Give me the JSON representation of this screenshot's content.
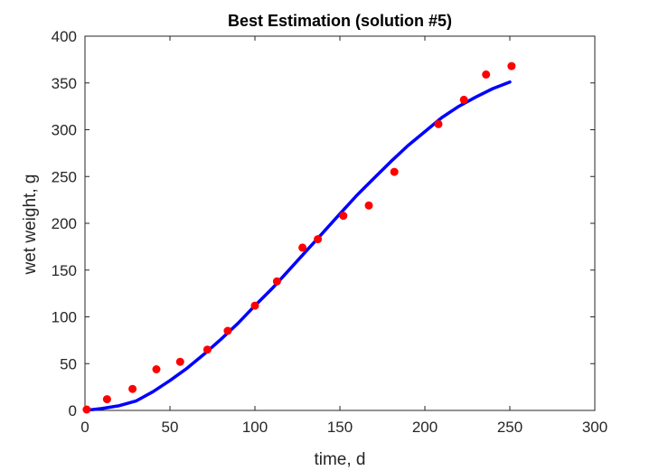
{
  "chart_data": {
    "type": "scatter",
    "title": "Best Estimation (solution #5)",
    "xlabel": "time, d",
    "ylabel": "wet weight, g",
    "xlim": [
      0,
      300
    ],
    "ylim": [
      0,
      400
    ],
    "xticks": [
      "0",
      "50",
      "100",
      "150",
      "200",
      "250",
      "300"
    ],
    "yticks": [
      "0",
      "50",
      "100",
      "150",
      "200",
      "250",
      "300",
      "350",
      "400"
    ],
    "grid": false,
    "legend": "none",
    "series": [
      {
        "kind": "markers",
        "color": "#ff0000",
        "x": [
          1,
          13,
          28,
          42,
          56,
          72,
          84,
          100,
          113,
          128,
          137,
          152,
          167,
          182,
          208,
          223,
          236,
          251
        ],
        "y": [
          1,
          12,
          23,
          44,
          52,
          65,
          85,
          112,
          138,
          174,
          183,
          208,
          219,
          255,
          306,
          332,
          359,
          368
        ]
      },
      {
        "kind": "line",
        "color": "#0000ff",
        "x": [
          0,
          10,
          20,
          30,
          40,
          50,
          60,
          70,
          80,
          90,
          100,
          110,
          120,
          130,
          140,
          150,
          160,
          170,
          180,
          190,
          200,
          210,
          220,
          230,
          240,
          250
        ],
        "y": [
          0,
          2,
          5,
          10,
          20,
          32,
          45,
          60,
          76,
          93,
          112,
          130,
          150,
          170,
          190,
          210,
          230,
          248,
          266,
          283,
          298,
          313,
          325,
          335,
          344,
          351
        ]
      }
    ]
  }
}
